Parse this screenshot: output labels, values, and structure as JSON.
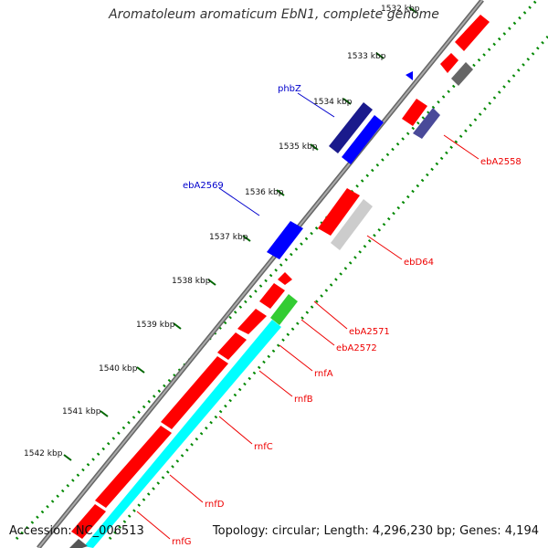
{
  "title": "Aromatoleum aromaticum EbN1, complete genome",
  "footer": {
    "accession": "Accession: NC_006513",
    "topology": "Topology: circular; Length: 4,296,230 bp; Genes: 4,194"
  },
  "colors": {
    "backbone": "#888888",
    "forward_gene": "#ff0000",
    "reverse_gene": "#ff0000",
    "label_red": "#ee0000",
    "label_blue": "#0000cc",
    "dots": "#008800",
    "navy": "#1a1a8c",
    "blue": "#0000ff",
    "cyan": "#00ffff",
    "green": "#33cc33",
    "gray": "#666666",
    "lightgray": "#cccccc",
    "slate": "#4a4a99"
  },
  "ticks": [
    {
      "label": "1532 kbp",
      "pos": 1532
    },
    {
      "label": "1533 kbp",
      "pos": 1533
    },
    {
      "label": "1534 kbp",
      "pos": 1534
    },
    {
      "label": "1535 kbp",
      "pos": 1535
    },
    {
      "label": "1536 kbp",
      "pos": 1536
    },
    {
      "label": "1537 kbp",
      "pos": 1537
    },
    {
      "label": "1538 kbp",
      "pos": 1538
    },
    {
      "label": "1539 kbp",
      "pos": 1539
    },
    {
      "label": "1540 kbp",
      "pos": 1540
    },
    {
      "label": "1541 kbp",
      "pos": 1541
    },
    {
      "label": "1542 kbp",
      "pos": 1542
    }
  ],
  "gene_labels": [
    {
      "text": "phbZ",
      "color": "#0000cc"
    },
    {
      "text": "ebA2569",
      "color": "#0000cc"
    },
    {
      "text": "ebA2558",
      "color": "#ee0000"
    },
    {
      "text": "ebD64",
      "color": "#ee0000"
    },
    {
      "text": "ebA2571",
      "color": "#ee0000"
    },
    {
      "text": "ebA2572",
      "color": "#ee0000"
    },
    {
      "text": "rnfA",
      "color": "#ee0000"
    },
    {
      "text": "rnfB",
      "color": "#ee0000"
    },
    {
      "text": "rnfC",
      "color": "#ee0000"
    },
    {
      "text": "rnfD",
      "color": "#ee0000"
    },
    {
      "text": "rnfG",
      "color": "#ee0000"
    }
  ]
}
